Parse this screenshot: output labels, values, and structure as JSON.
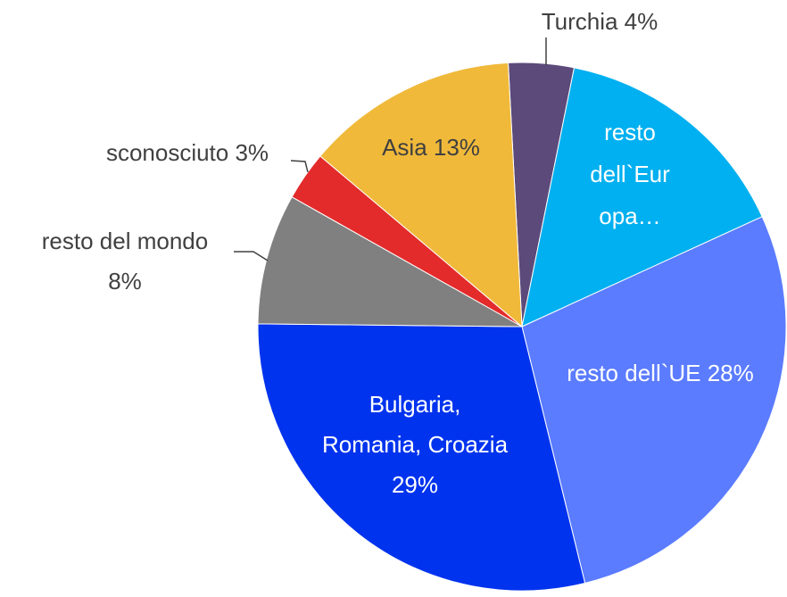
{
  "chart_data": {
    "type": "pie",
    "labels": [
      [
        "Turchia 4%"
      ],
      [
        "resto",
        "dell`Eur",
        "opa…"
      ],
      [
        "resto dell`UE 28%"
      ],
      [
        "Bulgaria,",
        "Romania, Croazia",
        "29%"
      ],
      [
        "resto del mondo",
        "8%"
      ],
      [
        "sconosciuto 3%"
      ],
      [
        "Asia 13%"
      ]
    ],
    "values": [
      4,
      15,
      28,
      29,
      8,
      3,
      13
    ],
    "colors": [
      "#5b4a7a",
      "#00b0f0",
      "#5b7cff",
      "#0033ee",
      "#808080",
      "#e32b2b",
      "#f0b93a"
    ]
  }
}
